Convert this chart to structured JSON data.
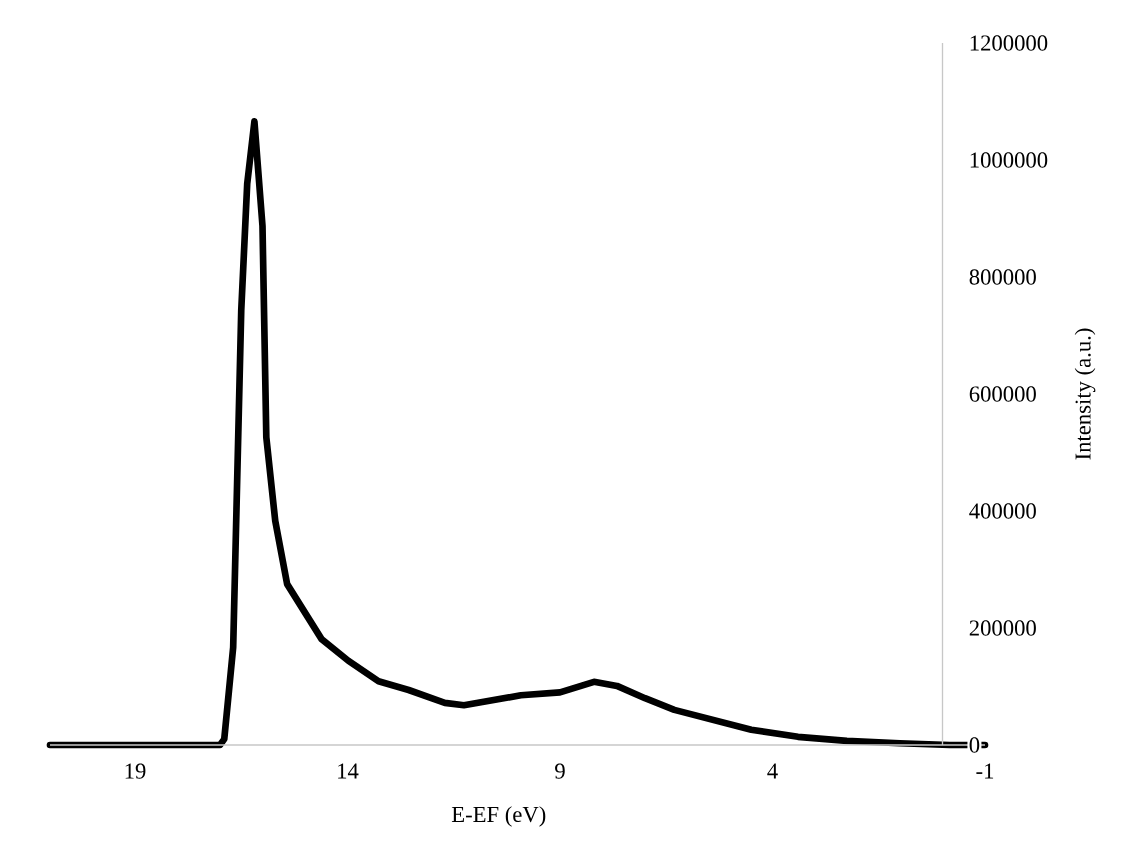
{
  "chart_data": {
    "type": "line",
    "xlabel": "E-EF (eV)",
    "ylabel": "Intensity (a.u.)",
    "xlim": [
      21,
      -1
    ],
    "ylim": [
      0,
      1200000
    ],
    "xticks": [
      19,
      14,
      9,
      4,
      -1
    ],
    "yticks": [
      0,
      200000,
      400000,
      600000,
      800000,
      1000000,
      1200000
    ],
    "grid": false,
    "marker": "none",
    "line_style": "solid",
    "series": [
      {
        "color": "#000000",
        "x": [
          21,
          17.0,
          16.9,
          16.69,
          16.5,
          16.36,
          16.19,
          16.0,
          15.91,
          15.7,
          15.42,
          14.61,
          13.98,
          13.27,
          12.56,
          11.71,
          11.26,
          9.92,
          9.0,
          8.2,
          7.66,
          7.0,
          6.31,
          4.5,
          3.4,
          2.25,
          1.0,
          -0.17,
          -1
        ],
        "values": [
          0,
          0,
          10000,
          167000,
          743000,
          959000,
          1066000,
          887000,
          526000,
          383000,
          275000,
          181000,
          144000,
          109000,
          94000,
          72000,
          68000,
          85000,
          90000,
          108000,
          101000,
          80000,
          60000,
          26000,
          14000,
          7000,
          3000,
          0,
          0
        ]
      }
    ]
  }
}
